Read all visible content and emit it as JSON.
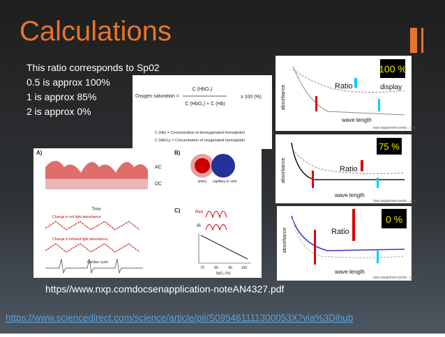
{
  "slide": {
    "title": "Calculations",
    "text_lines": [
      "This ratio corresponds to Sp02",
      "0.5 is approx 100%",
      "1 is approx 85%",
      "2 is approx 0%"
    ],
    "source_nxp": "https//www.nxp.comdocsenapplication-noteAN4327.pdf",
    "source_link": "https://www.sciencedirect.com/science/article/pii/S095461111300053X?via%3Dihub"
  },
  "formula": {
    "label": "Oxygen saturation =",
    "numerator": "C (HbO₂)",
    "denominator": "C (HbO₂) + C (Hb)",
    "multiplier": "x 100 (%)",
    "notes": [
      "C (Hb) = Concentration of deoxygenated hemoglobin",
      "C (HbO₂) = Concentration of oxygenated hemoglobin"
    ]
  },
  "figure": {
    "panel_a": "A)",
    "panel_b": "B)",
    "panel_c": "C)",
    "ac": "AC",
    "dc": "DC",
    "time": "Time",
    "red_change": "Change in red light absorbance",
    "ir_change": "Change in infrared light absorbance",
    "cardiac": "Cardiac cycle",
    "artery": "artery",
    "capillary": "capillary or vein",
    "red": "Red",
    "ir": "IR",
    "x_axis": "SpO₂ (%)",
    "x_ticks": [
      "70",
      "80",
      "90",
      "100"
    ]
  },
  "panels": [
    {
      "badge": "100 %",
      "ratio": "Ratio",
      "display": "display",
      "y_axis": "absorbance",
      "x_axis": "wave length",
      "credit": "how equipment works . com"
    },
    {
      "badge": "75 %",
      "ratio": "Ratio",
      "y_axis": "absorbance",
      "x_axis": "wave length",
      "credit": "how equipment works . com"
    },
    {
      "badge": "0 %",
      "ratio": "Ratio",
      "y_axis": "absorbance",
      "x_axis": "wave length",
      "credit": "how equipment works . com"
    }
  ]
}
